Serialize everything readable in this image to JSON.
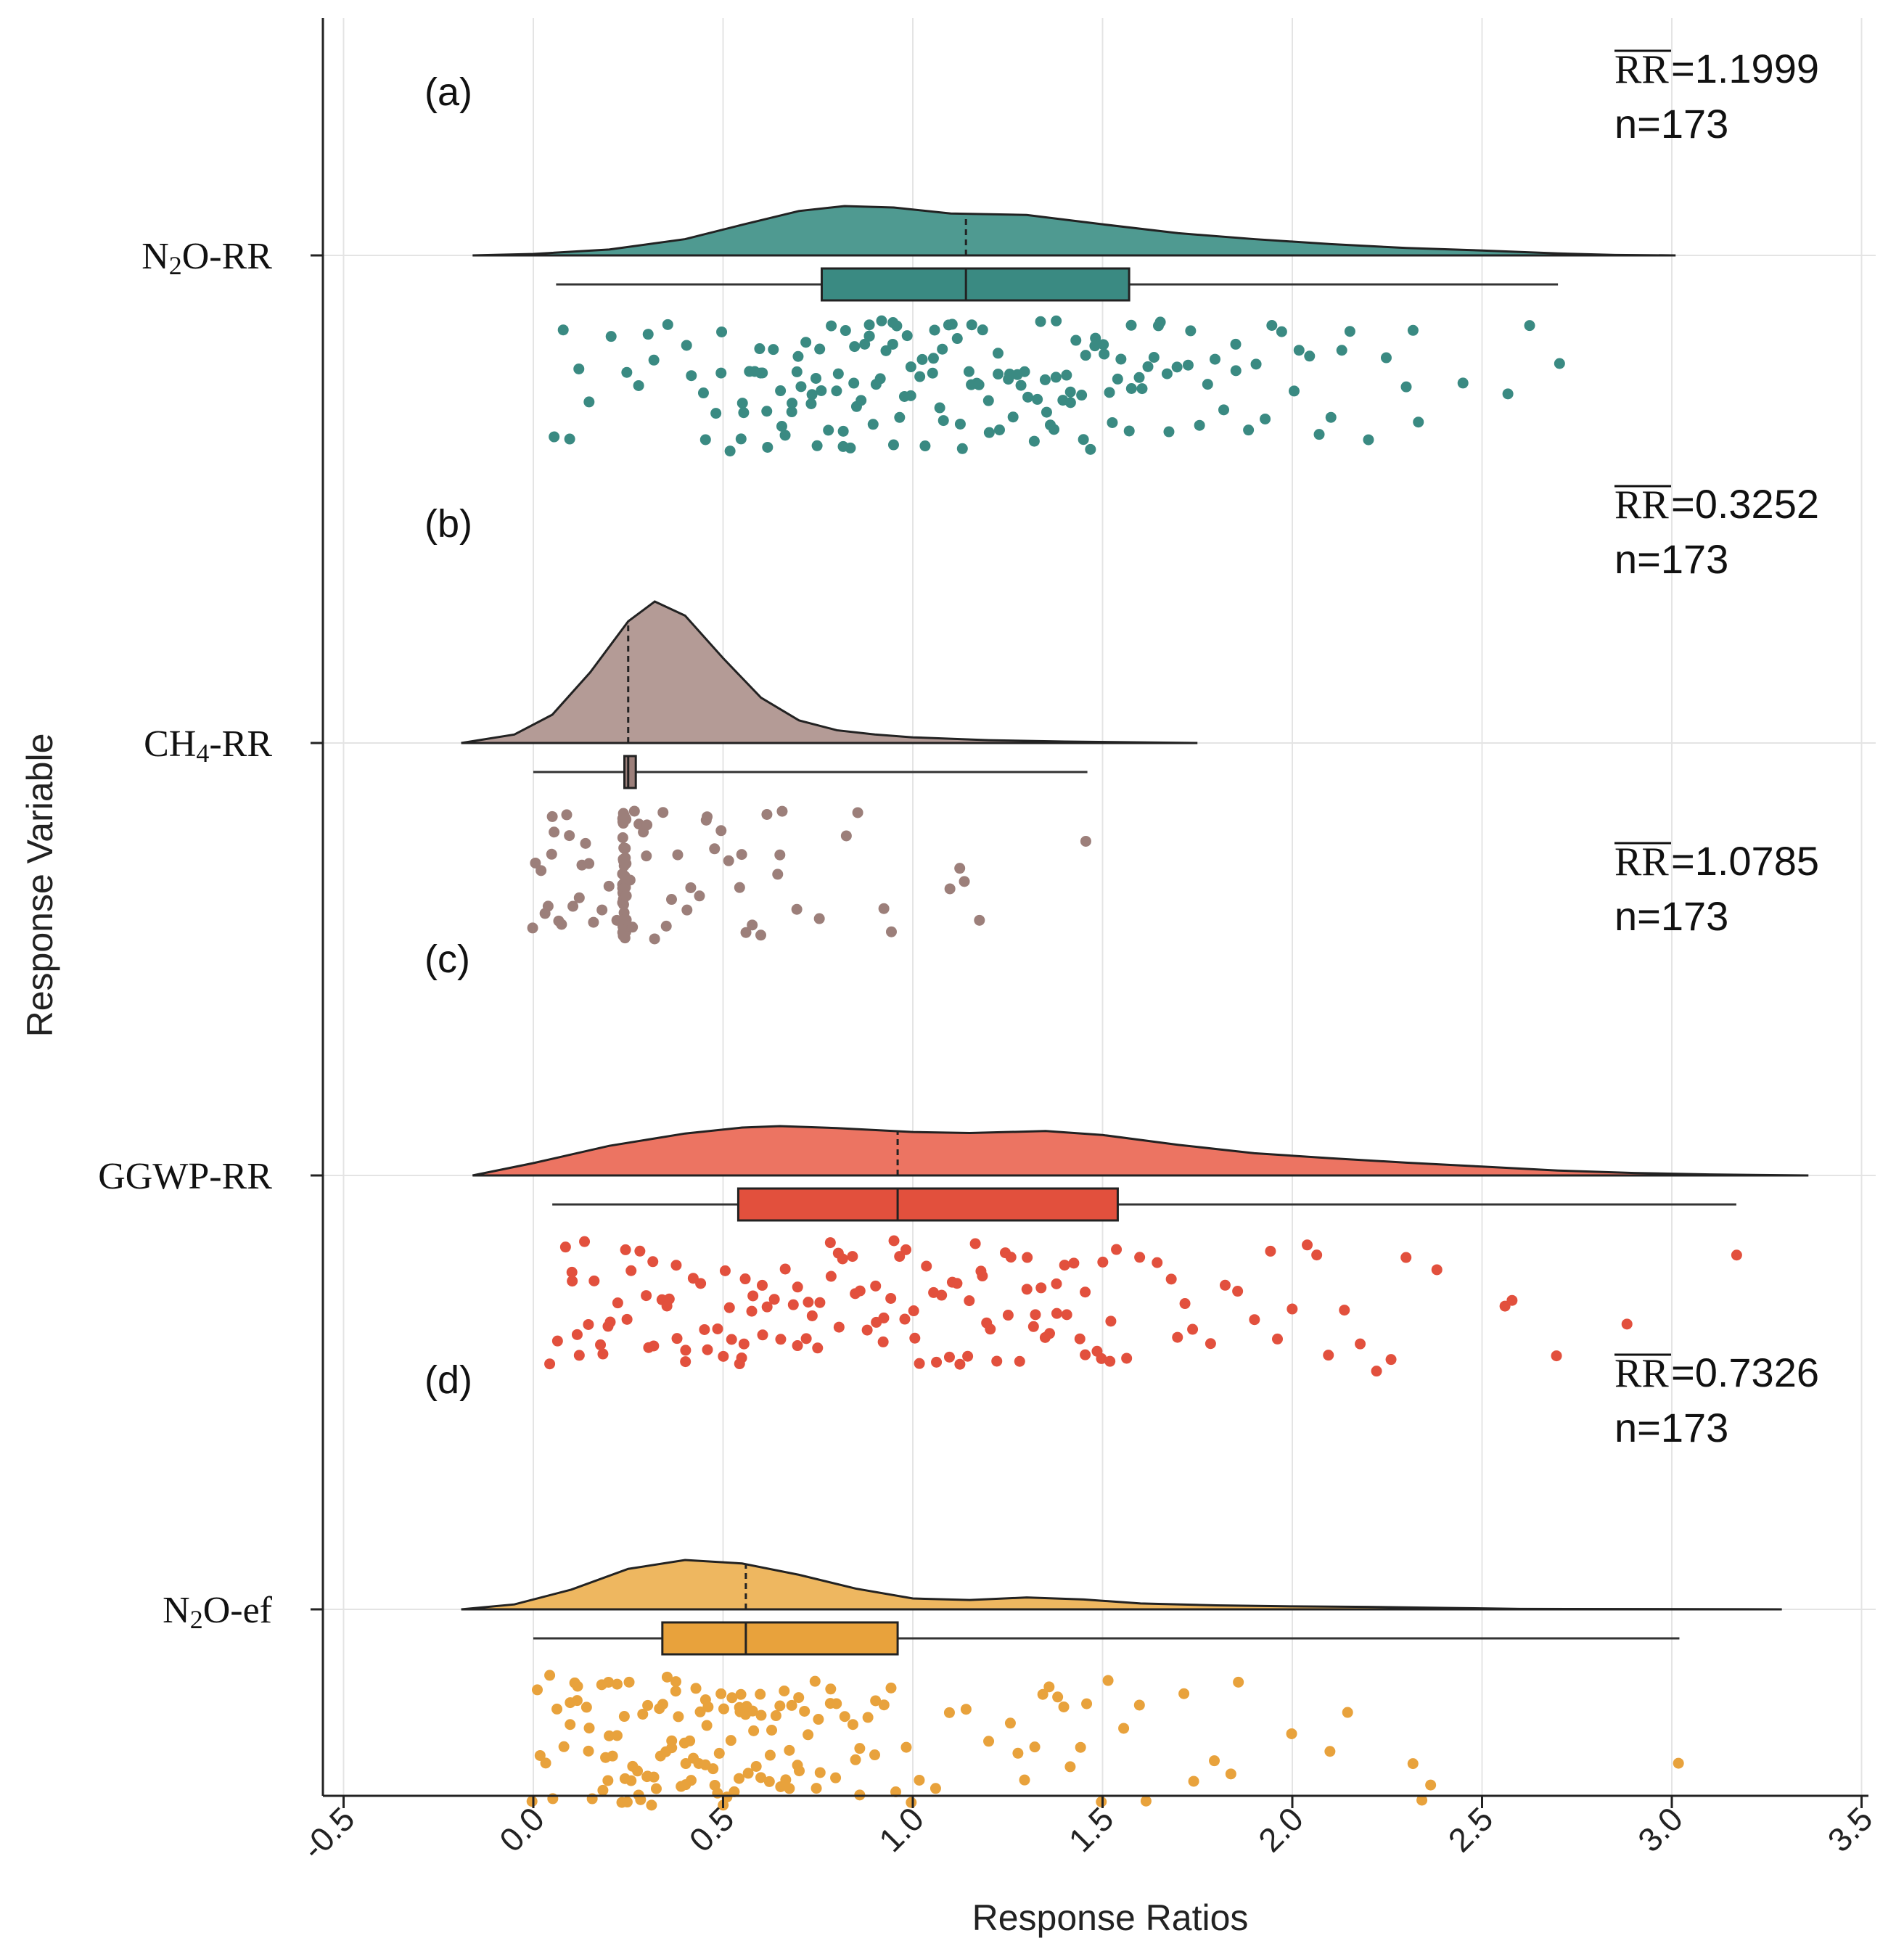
{
  "chart_data": {
    "type": "raincloud",
    "xlabel": "Response Ratios",
    "ylabel": "Response Variable",
    "xlim": [
      -0.5,
      3.5
    ],
    "x_ticks": [
      "-0.5",
      "0.0",
      "0.5",
      "1.0",
      "1.5",
      "2.0",
      "2.5",
      "3.0",
      "3.5"
    ],
    "grid": true,
    "series": [
      {
        "id": "a",
        "label_main": "N",
        "label_sub": "2",
        "label_rest": "O-RR",
        "panel": "(a)",
        "rr_symbol": "RR",
        "mean_text": "=1.1999",
        "n_text": "n=173",
        "color": "#3a8a82",
        "fill": "#4f9a91",
        "median": 1.14,
        "q1": 0.76,
        "q3": 1.57,
        "whisker_low": 0.06,
        "whisker_high": 2.7,
        "density": [
          [
            -0.16,
            0
          ],
          [
            0.0,
            0.03
          ],
          [
            0.2,
            0.12
          ],
          [
            0.4,
            0.33
          ],
          [
            0.55,
            0.62
          ],
          [
            0.7,
            0.9
          ],
          [
            0.82,
            1.0
          ],
          [
            0.95,
            0.97
          ],
          [
            1.1,
            0.85
          ],
          [
            1.3,
            0.82
          ],
          [
            1.5,
            0.63
          ],
          [
            1.7,
            0.45
          ],
          [
            1.9,
            0.33
          ],
          [
            2.1,
            0.23
          ],
          [
            2.3,
            0.15
          ],
          [
            2.5,
            0.1
          ],
          [
            2.7,
            0.04
          ],
          [
            2.85,
            0.01
          ],
          [
            3.01,
            0
          ]
        ],
        "points": [
          0.05,
          0.08,
          0.1,
          0.12,
          0.15,
          0.2,
          0.25,
          0.28,
          0.3,
          0.32,
          0.35,
          0.4,
          0.42,
          0.45,
          0.48,
          0.5,
          0.5,
          0.52,
          0.55,
          0.55,
          0.57,
          0.58,
          0.6,
          0.6,
          0.62,
          0.63,
          0.65,
          0.66,
          0.68,
          0.7,
          0.7,
          0.72,
          0.73,
          0.75,
          0.75,
          0.76,
          0.78,
          0.8,
          0.8,
          0.82,
          0.82,
          0.84,
          0.85,
          0.86,
          0.87,
          0.88,
          0.88,
          0.9,
          0.9,
          0.92,
          0.93,
          0.95,
          0.95,
          0.97,
          0.98,
          1.0,
          1.0,
          1.02,
          1.03,
          1.05,
          1.05,
          1.07,
          1.08,
          1.1,
          1.1,
          1.12,
          1.13,
          1.15,
          1.15,
          1.17,
          1.18,
          1.2,
          1.2,
          1.22,
          1.23,
          1.25,
          1.26,
          1.28,
          1.3,
          1.3,
          1.32,
          1.33,
          1.35,
          1.35,
          1.37,
          1.38,
          1.4,
          1.4,
          1.42,
          1.43,
          1.45,
          1.45,
          1.47,
          1.48,
          1.5,
          1.5,
          1.52,
          1.53,
          1.55,
          1.57,
          1.58,
          1.6,
          1.62,
          1.63,
          1.65,
          1.67,
          1.68,
          1.7,
          1.72,
          1.73,
          1.75,
          1.78,
          1.8,
          1.82,
          1.85,
          1.88,
          1.9,
          1.93,
          1.95,
          1.97,
          2.0,
          2.02,
          2.05,
          2.07,
          2.1,
          2.13,
          2.15,
          2.2,
          2.25,
          2.3,
          2.32,
          2.33,
          2.45,
          2.57,
          2.63,
          2.7,
          0.55,
          0.6,
          0.7,
          0.78,
          0.85,
          0.92,
          1.02,
          1.08,
          1.18,
          1.28,
          1.38,
          1.48,
          1.58,
          0.65,
          0.75,
          0.95,
          1.25,
          1.45,
          1.65,
          1.85,
          0.45,
          0.88,
          1.12,
          1.36,
          1.6,
          0.62,
          0.74,
          0.98,
          1.22,
          1.42,
          0.68,
          0.82,
          1.06,
          1.34,
          1.54,
          0.84,
          0.96,
          1.16
        ],
        "y_center": 352
      },
      {
        "id": "b",
        "label_main": "CH",
        "label_sub": "4",
        "label_rest": "-RR",
        "panel": "(b)",
        "rr_symbol": "RR",
        "mean_text": "=0.3252",
        "n_text": "n=173",
        "color": "#9c7f7a",
        "fill": "#b49b96",
        "median": 0.25,
        "q1": 0.24,
        "q3": 0.27,
        "whisker_low": 0.0,
        "whisker_high": 1.46,
        "density": [
          [
            -0.19,
            0
          ],
          [
            -0.05,
            0.06
          ],
          [
            0.05,
            0.2
          ],
          [
            0.15,
            0.5
          ],
          [
            0.25,
            0.86
          ],
          [
            0.32,
            1.0
          ],
          [
            0.4,
            0.9
          ],
          [
            0.5,
            0.6
          ],
          [
            0.6,
            0.32
          ],
          [
            0.7,
            0.16
          ],
          [
            0.8,
            0.09
          ],
          [
            0.9,
            0.06
          ],
          [
            1.0,
            0.04
          ],
          [
            1.2,
            0.02
          ],
          [
            1.4,
            0.01
          ],
          [
            1.75,
            0
          ]
        ],
        "points": [
          0.0,
          0.01,
          0.02,
          0.03,
          0.04,
          0.05,
          0.05,
          0.06,
          0.07,
          0.08,
          0.09,
          0.1,
          0.1,
          0.12,
          0.13,
          0.14,
          0.15,
          0.16,
          0.18,
          0.2,
          0.22,
          0.24,
          0.24,
          0.24,
          0.24,
          0.24,
          0.24,
          0.24,
          0.24,
          0.24,
          0.24,
          0.24,
          0.24,
          0.24,
          0.24,
          0.24,
          0.24,
          0.24,
          0.24,
          0.24,
          0.24,
          0.24,
          0.24,
          0.24,
          0.24,
          0.24,
          0.24,
          0.24,
          0.24,
          0.24,
          0.24,
          0.24,
          0.24,
          0.24,
          0.24,
          0.24,
          0.24,
          0.24,
          0.24,
          0.24,
          0.24,
          0.24,
          0.24,
          0.24,
          0.24,
          0.24,
          0.24,
          0.25,
          0.26,
          0.27,
          0.28,
          0.29,
          0.3,
          0.3,
          0.32,
          0.34,
          0.35,
          0.36,
          0.38,
          0.4,
          0.42,
          0.44,
          0.45,
          0.46,
          0.48,
          0.5,
          0.52,
          0.54,
          0.55,
          0.56,
          0.58,
          0.6,
          0.62,
          0.64,
          0.65,
          0.66,
          0.7,
          0.75,
          0.82,
          0.86,
          0.92,
          0.94,
          1.1,
          1.12,
          1.14,
          1.18,
          1.46
        ],
        "y_center": 1024
      },
      {
        "id": "c",
        "label_main": "GGWP-RR",
        "label_sub": "",
        "label_rest": "",
        "panel": "(c)",
        "rr_symbol": "RR",
        "mean_text": "=1.0785",
        "n_text": "n=173",
        "color": "#e2503d",
        "fill": "#ec7462",
        "median": 0.96,
        "q1": 0.54,
        "q3": 1.54,
        "whisker_low": 0.05,
        "whisker_high": 3.17,
        "density": [
          [
            -0.16,
            0
          ],
          [
            0.0,
            0.25
          ],
          [
            0.2,
            0.6
          ],
          [
            0.4,
            0.85
          ],
          [
            0.55,
            0.97
          ],
          [
            0.65,
            1.0
          ],
          [
            0.8,
            0.96
          ],
          [
            1.0,
            0.88
          ],
          [
            1.15,
            0.86
          ],
          [
            1.35,
            0.9
          ],
          [
            1.5,
            0.82
          ],
          [
            1.7,
            0.62
          ],
          [
            1.9,
            0.45
          ],
          [
            2.1,
            0.35
          ],
          [
            2.3,
            0.26
          ],
          [
            2.5,
            0.18
          ],
          [
            2.7,
            0.1
          ],
          [
            2.9,
            0.05
          ],
          [
            3.1,
            0.02
          ],
          [
            3.36,
            0
          ]
        ],
        "points": [
          0.04,
          0.06,
          0.08,
          0.1,
          0.12,
          0.14,
          0.16,
          0.18,
          0.2,
          0.22,
          0.24,
          0.26,
          0.28,
          0.3,
          0.32,
          0.34,
          0.36,
          0.38,
          0.4,
          0.42,
          0.44,
          0.46,
          0.48,
          0.5,
          0.52,
          0.54,
          0.55,
          0.56,
          0.58,
          0.6,
          0.62,
          0.64,
          0.66,
          0.68,
          0.7,
          0.72,
          0.74,
          0.76,
          0.78,
          0.8,
          0.82,
          0.84,
          0.86,
          0.88,
          0.9,
          0.92,
          0.94,
          0.96,
          0.98,
          1.0,
          1.02,
          1.04,
          1.06,
          1.08,
          1.1,
          1.12,
          1.14,
          1.16,
          1.18,
          1.2,
          1.22,
          1.24,
          1.26,
          1.28,
          1.3,
          1.32,
          1.34,
          1.36,
          1.38,
          1.4,
          1.42,
          1.44,
          1.46,
          1.48,
          1.5,
          1.52,
          1.54,
          1.56,
          1.6,
          1.64,
          1.68,
          1.7,
          1.72,
          1.74,
          1.78,
          1.82,
          1.86,
          1.9,
          1.94,
          1.96,
          2.0,
          2.04,
          2.06,
          2.1,
          2.14,
          2.18,
          2.22,
          2.26,
          2.3,
          2.38,
          2.56,
          2.58,
          2.7,
          2.88,
          3.17,
          0.1,
          0.2,
          0.3,
          0.4,
          0.5,
          0.6,
          0.7,
          0.8,
          0.9,
          1.0,
          1.1,
          1.2,
          1.3,
          1.4,
          1.5,
          0.15,
          0.25,
          0.35,
          0.45,
          0.55,
          0.65,
          0.75,
          0.85,
          0.95,
          1.05,
          1.15,
          1.25,
          1.35,
          1.45,
          0.18,
          0.38,
          0.58,
          0.78,
          0.98,
          1.18,
          1.38,
          0.12,
          0.32,
          0.52,
          0.72,
          0.92,
          1.12,
          1.32,
          1.52
        ],
        "y_center": 1620
      },
      {
        "id": "d",
        "label_main": "N",
        "label_sub": "2",
        "label_rest": "O-ef",
        "panel": "(d)",
        "rr_symbol": "RR",
        "mean_text": "=0.7326",
        "n_text": "n=173",
        "color": "#e8a23c",
        "fill": "#eeb760",
        "median": 0.56,
        "q1": 0.34,
        "q3": 0.96,
        "whisker_low": 0.0,
        "whisker_high": 3.02,
        "density": [
          [
            -0.19,
            0
          ],
          [
            -0.05,
            0.1
          ],
          [
            0.1,
            0.4
          ],
          [
            0.25,
            0.82
          ],
          [
            0.4,
            1.0
          ],
          [
            0.55,
            0.93
          ],
          [
            0.7,
            0.7
          ],
          [
            0.85,
            0.42
          ],
          [
            1.0,
            0.22
          ],
          [
            1.15,
            0.19
          ],
          [
            1.3,
            0.24
          ],
          [
            1.45,
            0.2
          ],
          [
            1.6,
            0.12
          ],
          [
            1.8,
            0.08
          ],
          [
            2.0,
            0.06
          ],
          [
            2.2,
            0.05
          ],
          [
            2.4,
            0.03
          ],
          [
            2.6,
            0.01
          ],
          [
            3.29,
            0
          ]
        ],
        "points": [
          0.0,
          0.01,
          0.02,
          0.03,
          0.04,
          0.05,
          0.06,
          0.08,
          0.1,
          0.11,
          0.12,
          0.14,
          0.15,
          0.16,
          0.18,
          0.19,
          0.2,
          0.21,
          0.22,
          0.23,
          0.24,
          0.25,
          0.26,
          0.27,
          0.28,
          0.29,
          0.3,
          0.31,
          0.32,
          0.33,
          0.34,
          0.35,
          0.36,
          0.37,
          0.38,
          0.39,
          0.4,
          0.41,
          0.42,
          0.43,
          0.44,
          0.45,
          0.46,
          0.47,
          0.48,
          0.49,
          0.5,
          0.51,
          0.52,
          0.53,
          0.54,
          0.55,
          0.56,
          0.57,
          0.58,
          0.59,
          0.6,
          0.62,
          0.63,
          0.64,
          0.65,
          0.66,
          0.67,
          0.68,
          0.7,
          0.72,
          0.74,
          0.75,
          0.76,
          0.78,
          0.8,
          0.82,
          0.84,
          0.86,
          0.88,
          0.9,
          0.92,
          0.94,
          0.96,
          0.98,
          1.0,
          1.02,
          1.06,
          1.1,
          1.14,
          1.2,
          1.26,
          1.28,
          1.3,
          1.32,
          1.34,
          1.36,
          1.38,
          1.4,
          1.42,
          1.44,
          1.46,
          1.5,
          1.52,
          1.56,
          1.6,
          1.62,
          1.72,
          1.74,
          1.8,
          1.84,
          1.86,
          2.0,
          2.1,
          2.14,
          2.32,
          2.34,
          2.36,
          3.02,
          0.1,
          0.2,
          0.3,
          0.4,
          0.5,
          0.6,
          0.7,
          0.8,
          0.9,
          0.15,
          0.25,
          0.35,
          0.45,
          0.55,
          0.65,
          0.75,
          0.85,
          0.22,
          0.32,
          0.42,
          0.52,
          0.62,
          0.28,
          0.38,
          0.48,
          0.58,
          0.68,
          0.18,
          0.36,
          0.54,
          0.72,
          0.44,
          0.26,
          0.46,
          0.66,
          0.86,
          0.12,
          0.34,
          0.56,
          0.78,
          0.24,
          0.5,
          0.6,
          0.7,
          0.4,
          0.3,
          0.2
        ],
        "y_center": 2218
      }
    ]
  }
}
